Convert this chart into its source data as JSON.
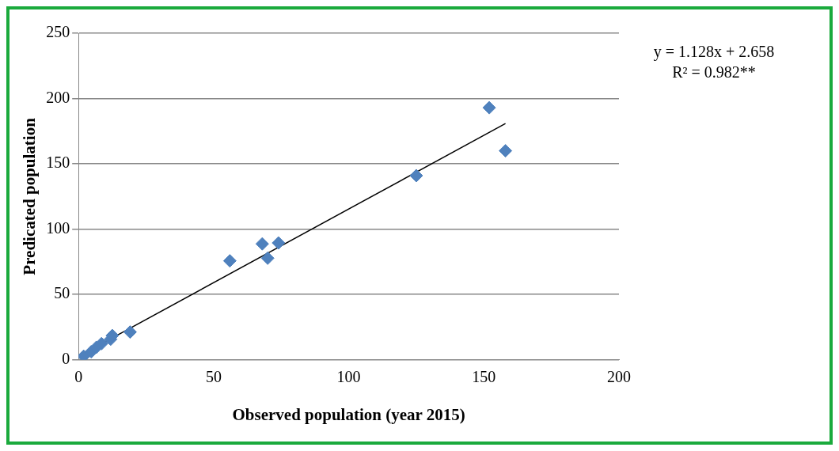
{
  "chart_data": {
    "type": "scatter",
    "xlabel": "Observed population (year 2015)",
    "ylabel": "Predicated population",
    "xlim": [
      0,
      200
    ],
    "xticks": [
      0,
      50,
      100,
      150,
      200
    ],
    "ylim": [
      0,
      250
    ],
    "yticks": [
      0,
      50,
      100,
      150,
      200,
      250
    ],
    "grid": "y",
    "legend": false,
    "marker": "diamond",
    "annotations": [
      "y = 1.128x + 2.658",
      "R² = 0.982**"
    ],
    "series": [
      {
        "color": "#4f81bd",
        "x": [
          1.9,
          4.7,
          6.6,
          8.5,
          11.9,
          12.5,
          19.1,
          56,
          68,
          70,
          74,
          125,
          152,
          158
        ],
        "values": [
          2.8,
          6.2,
          9.6,
          12.4,
          15.8,
          18.6,
          21.3,
          75.8,
          88.8,
          77.8,
          89.5,
          141,
          193,
          160
        ]
      },
      {
        "type": "line",
        "marker": "none",
        "color": "#000000",
        "x": [
          2,
          158
        ],
        "values": [
          4.9,
          180.9
        ]
      }
    ]
  }
}
